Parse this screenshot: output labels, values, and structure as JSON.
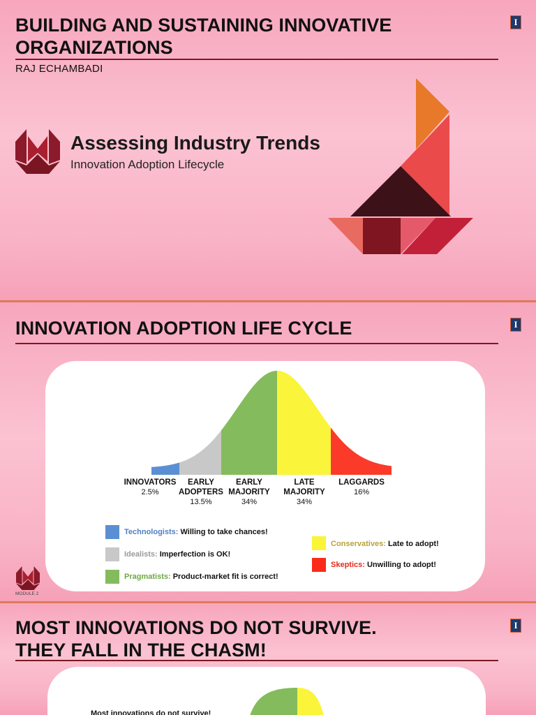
{
  "slide1": {
    "title": "BUILDING AND SUSTAINING INNOVATIVE ORGANIZATIONS",
    "title_line1": "BUILDING AND SUSTAINING INNOVATIVE",
    "title_line2": "ORGANIZATIONS",
    "author": "RAJ ECHAMBADI",
    "module_title": "Assessing Industry Trends",
    "module_subtitle": "Innovation Adoption Lifecycle",
    "badge": "I"
  },
  "slide2": {
    "title": "INNOVATION ADOPTION LIFE CYCLE",
    "badge": "I",
    "module_label": "MODULE 2",
    "segments": [
      {
        "line1": "INNOVATORS",
        "line2": "",
        "pct": "2.5%",
        "color": "#5b8fd3"
      },
      {
        "line1": "EARLY",
        "line2": "ADOPTERS",
        "pct": "13.5%",
        "color": "#c8c8c8"
      },
      {
        "line1": "EARLY",
        "line2": "MAJORITY",
        "pct": "34%",
        "color": "#84bb5c"
      },
      {
        "line1": "LATE",
        "line2": "MAJORITY",
        "pct": "34%",
        "color": "#faf43a"
      },
      {
        "line1": "LAGGARDS",
        "line2": "",
        "pct": "16%",
        "color": "#fb3a2a"
      }
    ],
    "legend": [
      {
        "name": "Technologists:",
        "desc": "Willing to take chances!",
        "swatch": "#5b8fd3",
        "name_color": "#4f7fc4"
      },
      {
        "name": "Idealists:",
        "desc": "Imperfection is OK!",
        "swatch": "#c8c8c8",
        "name_color": "#9a9a9a"
      },
      {
        "name": "Pragmatists:",
        "desc": "Product-market fit is correct!",
        "swatch": "#84bb5c",
        "name_color": "#6ea845"
      },
      {
        "name": "Conservatives:",
        "desc": "Late to adopt!",
        "swatch": "#faf43a",
        "name_color": "#b8a23a"
      },
      {
        "name": "Skeptics:",
        "desc": "Unwilling to adopt!",
        "swatch": "#fb2a1a",
        "name_color": "#e8281a"
      }
    ]
  },
  "slide3": {
    "title_line1": "MOST INNOVATIONS DO NOT SURVIVE.",
    "title_line2": "THEY FALL IN THE CHASM!",
    "badge": "I",
    "partial_text": "Most innovations do not survive!"
  },
  "colors": {
    "accent_rule": "#7a1a22",
    "separator": "#e07a57",
    "badge_blue": "#1d3a6e",
    "badge_orange": "#e35b2c"
  }
}
